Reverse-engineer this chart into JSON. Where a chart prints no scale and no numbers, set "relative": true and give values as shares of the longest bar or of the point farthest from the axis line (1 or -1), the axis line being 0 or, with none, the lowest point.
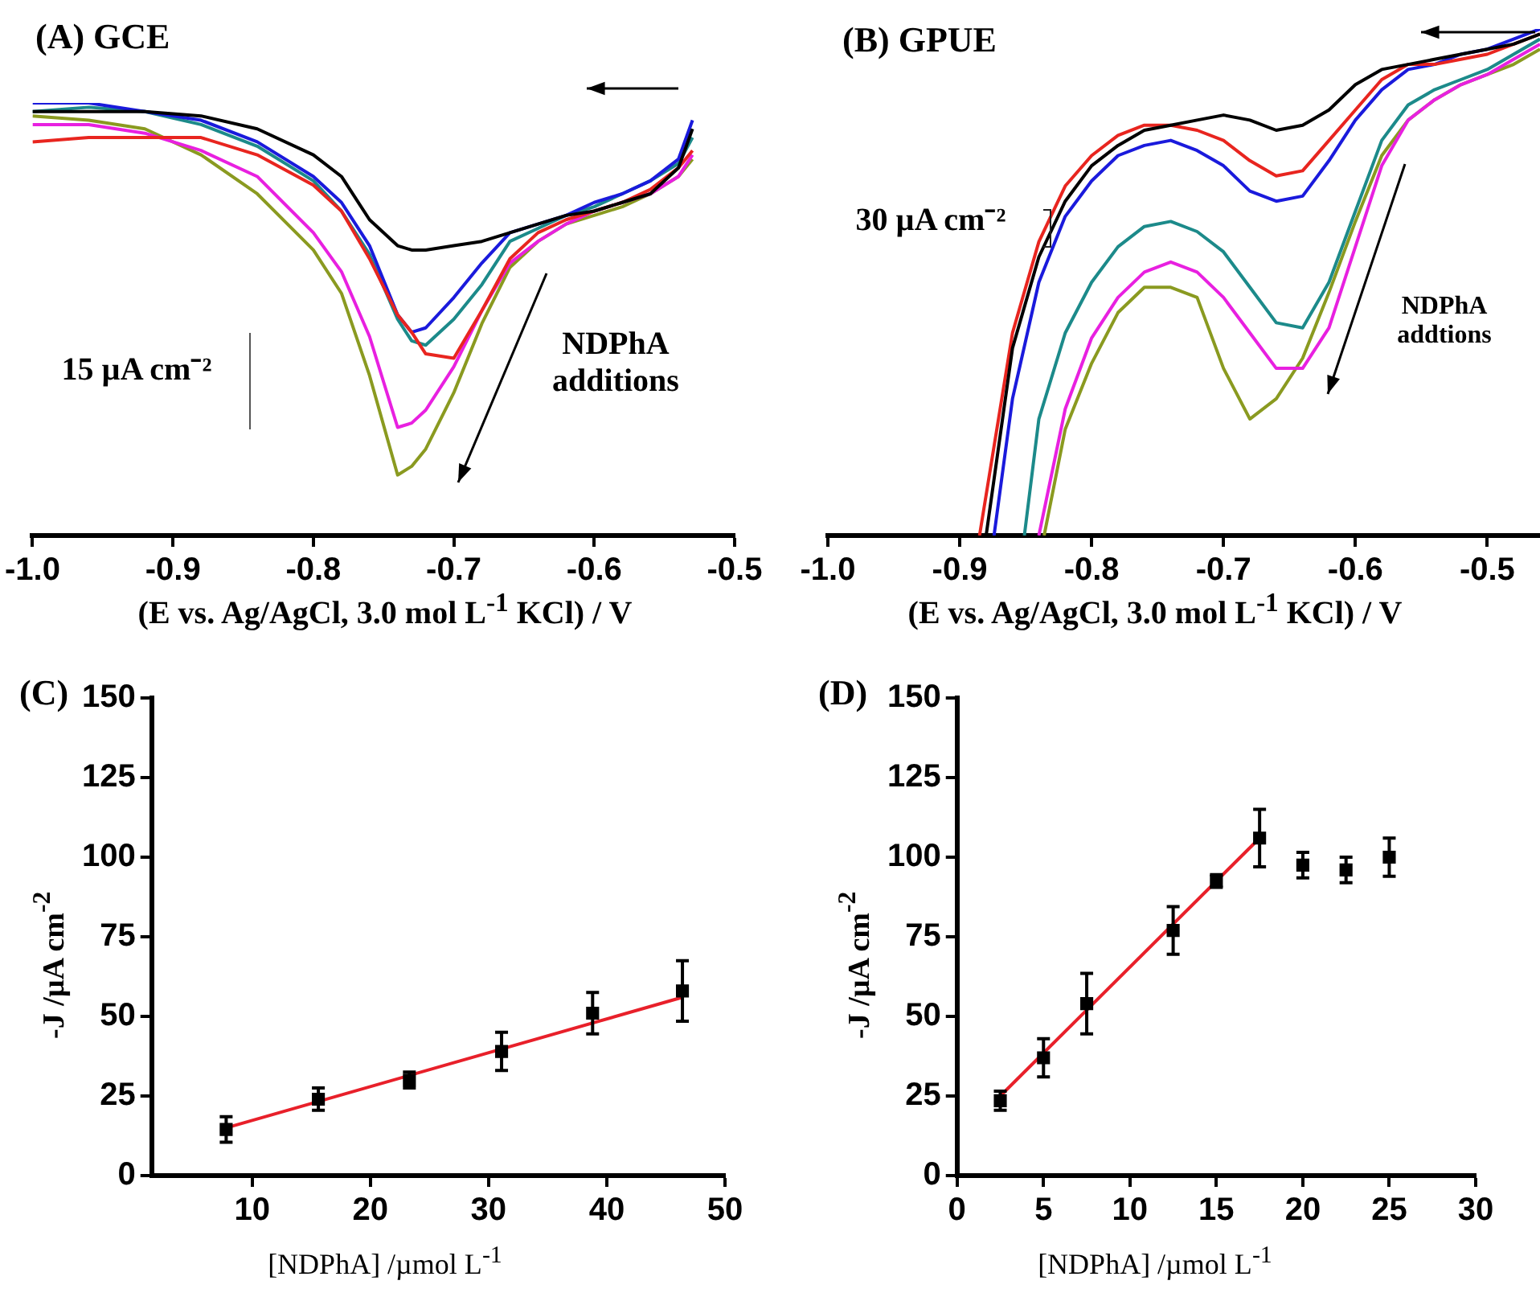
{
  "chart_data": [
    {
      "type": "line",
      "title": "(A) GCE",
      "xlabel": "(E vs. Ag/AgCl, 3.0 mol L$^{-1}$ KCl) / V",
      "relative": true,
      "tick_labels": "x",
      "xlim": [
        -1.0,
        -0.5
      ],
      "xticks": [
        {
          "value": -1.0,
          "label": "-1.0"
        },
        -0.9,
        -0.8,
        -0.7,
        -0.6,
        -0.5
      ],
      "annotations": [
        "15 µA cm⁻²",
        "NDPhA additions"
      ],
      "x": [
        -1.0,
        -0.96,
        -0.92,
        -0.88,
        -0.84,
        -0.8,
        -0.78,
        -0.76,
        -0.74,
        -0.73,
        -0.72,
        -0.7,
        -0.68,
        -0.66,
        -0.64,
        -0.62,
        -0.6,
        -0.58,
        -0.56,
        -0.54,
        -0.53
      ],
      "series": [
        {
          "color": "#000000",
          "values": [
            0.98,
            0.98,
            0.98,
            0.97,
            0.94,
            0.88,
            0.83,
            0.73,
            0.67,
            0.66,
            0.66,
            0.67,
            0.68,
            0.7,
            0.72,
            0.74,
            0.75,
            0.77,
            0.79,
            0.85,
            0.94
          ]
        },
        {
          "color": "#e8251f",
          "values": [
            0.91,
            0.92,
            0.92,
            0.92,
            0.88,
            0.81,
            0.75,
            0.64,
            0.51,
            0.47,
            0.42,
            0.41,
            0.52,
            0.64,
            0.7,
            0.73,
            0.75,
            0.77,
            0.8,
            0.85,
            0.89
          ]
        },
        {
          "color": "#1a1adc",
          "values": [
            1.0,
            1.0,
            0.98,
            0.96,
            0.91,
            0.83,
            0.77,
            0.67,
            0.51,
            0.47,
            0.48,
            0.55,
            0.63,
            0.7,
            0.72,
            0.74,
            0.77,
            0.79,
            0.82,
            0.87,
            0.96
          ]
        },
        {
          "color": "#1c8a8a",
          "values": [
            0.98,
            0.99,
            0.98,
            0.95,
            0.9,
            0.82,
            0.75,
            0.65,
            0.5,
            0.45,
            0.44,
            0.5,
            0.58,
            0.68,
            0.71,
            0.74,
            0.76,
            0.79,
            0.82,
            0.86,
            0.92
          ]
        },
        {
          "color": "#e820e0",
          "values": [
            0.95,
            0.95,
            0.93,
            0.89,
            0.83,
            0.7,
            0.61,
            0.46,
            0.25,
            0.26,
            0.29,
            0.39,
            0.52,
            0.63,
            0.68,
            0.72,
            0.75,
            0.77,
            0.79,
            0.83,
            0.88
          ]
        },
        {
          "color": "#8a9a20",
          "values": [
            0.97,
            0.96,
            0.94,
            0.88,
            0.79,
            0.66,
            0.56,
            0.37,
            0.14,
            0.16,
            0.2,
            0.33,
            0.49,
            0.62,
            0.68,
            0.72,
            0.74,
            0.76,
            0.79,
            0.83,
            0.87
          ]
        }
      ]
    },
    {
      "type": "line",
      "title": "(B) GPUE",
      "xlabel": "(E vs. Ag/AgCl, 3.0 mol L$^{-1}$ KCl) / V",
      "relative": true,
      "tick_labels": "x",
      "xlim": [
        -1.0,
        -0.46
      ],
      "xticks": [
        {
          "value": -1.0,
          "label": "-1.0"
        },
        -0.9,
        -0.8,
        -0.7,
        -0.6,
        -0.5
      ],
      "annotations": [
        "30 µA cm⁻²",
        "NDPhA addtions"
      ],
      "series": [
        {
          "color": "#000000",
          "x": [
            -0.88,
            -0.86,
            -0.84,
            -0.82,
            -0.8,
            -0.78,
            -0.76,
            -0.74,
            -0.72,
            -0.7,
            -0.68,
            -0.66,
            -0.64,
            -0.62,
            -0.6,
            -0.58,
            -0.56,
            -0.54,
            -0.52,
            -0.5,
            -0.48,
            -0.46
          ],
          "values": [
            0,
            0.37,
            0.55,
            0.66,
            0.73,
            0.77,
            0.8,
            0.81,
            0.82,
            0.83,
            0.82,
            0.8,
            0.81,
            0.84,
            0.89,
            0.92,
            0.93,
            0.94,
            0.95,
            0.96,
            0.97,
            0.99
          ]
        },
        {
          "color": "#e8251f",
          "x": [
            -0.885,
            -0.86,
            -0.84,
            -0.82,
            -0.8,
            -0.78,
            -0.76,
            -0.74,
            -0.72,
            -0.7,
            -0.68,
            -0.66,
            -0.64,
            -0.62,
            -0.6,
            -0.58,
            -0.56,
            -0.54,
            -0.52,
            -0.5,
            -0.48,
            -0.46
          ],
          "values": [
            0,
            0.4,
            0.58,
            0.69,
            0.75,
            0.79,
            0.81,
            0.81,
            0.8,
            0.78,
            0.74,
            0.71,
            0.72,
            0.78,
            0.84,
            0.9,
            0.93,
            0.93,
            0.94,
            0.95,
            0.97,
            0.99
          ]
        },
        {
          "color": "#1a1adc",
          "x": [
            -0.874,
            -0.86,
            -0.84,
            -0.82,
            -0.8,
            -0.78,
            -0.76,
            -0.74,
            -0.72,
            -0.7,
            -0.68,
            -0.66,
            -0.64,
            -0.62,
            -0.6,
            -0.58,
            -0.56,
            -0.54,
            -0.52,
            -0.5,
            -0.48,
            -0.46
          ],
          "values": [
            0,
            0.27,
            0.5,
            0.63,
            0.7,
            0.75,
            0.77,
            0.78,
            0.76,
            0.73,
            0.68,
            0.66,
            0.67,
            0.74,
            0.82,
            0.88,
            0.92,
            0.93,
            0.95,
            0.96,
            0.98,
            1.0
          ]
        },
        {
          "color": "#1c8a8a",
          "x": [
            -0.851,
            -0.84,
            -0.82,
            -0.8,
            -0.78,
            -0.76,
            -0.74,
            -0.72,
            -0.7,
            -0.68,
            -0.66,
            -0.64,
            -0.62,
            -0.6,
            -0.58,
            -0.56,
            -0.54,
            -0.52,
            -0.5,
            -0.48,
            -0.46
          ],
          "values": [
            0,
            0.23,
            0.4,
            0.5,
            0.57,
            0.61,
            0.62,
            0.6,
            0.56,
            0.49,
            0.42,
            0.41,
            0.5,
            0.64,
            0.78,
            0.85,
            0.88,
            0.9,
            0.92,
            0.95,
            0.98
          ]
        },
        {
          "color": "#e820e0",
          "x": [
            -0.84,
            -0.82,
            -0.8,
            -0.78,
            -0.76,
            -0.74,
            -0.72,
            -0.7,
            -0.68,
            -0.66,
            -0.64,
            -0.62,
            -0.6,
            -0.58,
            -0.56,
            -0.54,
            -0.52,
            -0.5,
            -0.48,
            -0.46
          ],
          "values": [
            0,
            0.25,
            0.39,
            0.47,
            0.52,
            0.54,
            0.52,
            0.47,
            0.4,
            0.33,
            0.33,
            0.41,
            0.57,
            0.73,
            0.82,
            0.86,
            0.89,
            0.91,
            0.94,
            0.97
          ]
        },
        {
          "color": "#8a9a20",
          "x": [
            -0.836,
            -0.82,
            -0.8,
            -0.78,
            -0.76,
            -0.74,
            -0.72,
            -0.7,
            -0.68,
            -0.66,
            -0.64,
            -0.62,
            -0.6,
            -0.58,
            -0.56,
            -0.54,
            -0.52,
            -0.5,
            -0.48,
            -0.46
          ],
          "values": [
            0,
            0.21,
            0.34,
            0.44,
            0.49,
            0.49,
            0.47,
            0.33,
            0.23,
            0.27,
            0.35,
            0.48,
            0.62,
            0.75,
            0.82,
            0.86,
            0.89,
            0.91,
            0.93,
            0.96
          ]
        }
      ]
    },
    {
      "type": "scatter",
      "title": "(C)",
      "xlabel": "[NDPhA] /µmol L$^{-1}$",
      "ylabel": "-J /µA cm$^{-2}$",
      "xlim": [
        1.5,
        50
      ],
      "xticks": [
        10,
        20,
        30,
        40,
        50
      ],
      "ylim": [
        0,
        150
      ],
      "yticks": [
        0,
        25,
        50,
        75,
        100,
        125,
        150
      ],
      "series": [
        {
          "marker": "square",
          "color": "#000000",
          "x": [
            7.8,
            15.6,
            23.3,
            31.1,
            38.8,
            46.4
          ],
          "values": [
            14.5,
            24,
            30,
            39,
            51,
            58
          ],
          "errors": [
            4,
            3.5,
            2.5,
            6,
            6.5,
            9.5
          ]
        },
        {
          "type": "line",
          "color": "#e8202a",
          "x": [
            7.8,
            46.4
          ],
          "values": [
            15,
            56
          ]
        }
      ]
    },
    {
      "type": "scatter",
      "title": "(D)",
      "xlabel": "[NDPhA] /µmol L$^{-1}$",
      "ylabel": "-J /µA cm$^{-2}$",
      "xlim": [
        0,
        30
      ],
      "xticks": [
        0,
        5,
        10,
        15,
        20,
        25,
        30
      ],
      "ylim": [
        0,
        150
      ],
      "yticks": [
        0,
        25,
        50,
        75,
        100,
        125,
        150
      ],
      "series": [
        {
          "marker": "square",
          "color": "#000000",
          "x": [
            2.5,
            5,
            7.5,
            12.5,
            15,
            17.5,
            20,
            22.5,
            25
          ],
          "values": [
            23.5,
            37,
            54,
            77,
            92.5,
            106,
            97.5,
            96,
            100
          ],
          "errors": [
            3,
            6,
            9.5,
            7.5,
            2,
            9,
            4,
            4,
            6
          ]
        },
        {
          "type": "line",
          "color": "#e8202a",
          "x": [
            2.5,
            17.5
          ],
          "values": [
            25,
            106
          ]
        }
      ]
    }
  ]
}
